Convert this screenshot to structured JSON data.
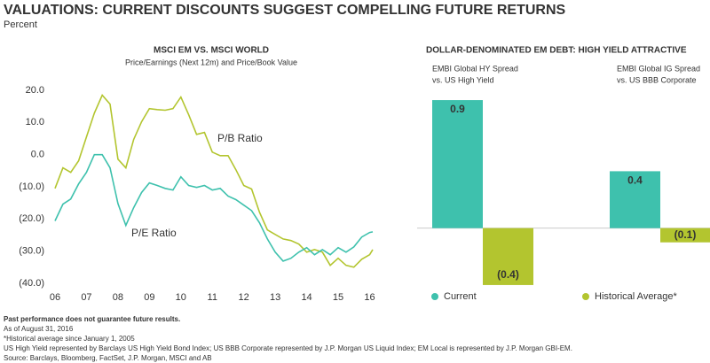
{
  "title": "VALUATIONS: CURRENT DISCOUNTS SUGGEST COMPELLING FUTURE RETURNS",
  "subtitle": "Percent",
  "notes": [
    "Past performance does not guarantee future results.",
    "As of August 31, 2016",
    "*Historical average since January 1, 2005",
    "US High Yield represented by Barclays US High Yield Bond Index; US BBB Corporate represented by J.P. Morgan US Liquid Index; EM Local is represented by J.P. Morgan GBI-EM.",
    "Source: Barclays, Bloomberg, FactSet, J.P. Morgan, MSCI and AB"
  ],
  "chart_data": [
    {
      "type": "line",
      "title": "MSCI EM VS. MSCI WORLD",
      "subtitle": "Price/Earnings (Next 12m) and Price/Book Value",
      "x": [
        2006,
        2006.25,
        2006.5,
        2006.75,
        2007,
        2007.25,
        2007.5,
        2007.75,
        2008,
        2008.25,
        2008.5,
        2008.75,
        2009,
        2009.25,
        2009.5,
        2009.75,
        2010,
        2010.25,
        2010.5,
        2010.75,
        2011,
        2011.25,
        2011.5,
        2011.75,
        2012,
        2012.25,
        2012.5,
        2012.75,
        2013,
        2013.25,
        2013.5,
        2013.75,
        2014,
        2014.25,
        2014.5,
        2014.75,
        2015,
        2015.25,
        2015.5,
        2015.75,
        2016,
        2016.1
      ],
      "series": [
        {
          "name": "P/B Ratio",
          "color": "#b3c52f",
          "values": [
            -10.5,
            -4.1,
            -5.5,
            -1.9,
            5.5,
            12.9,
            18.5,
            15.7,
            -1.4,
            -4.1,
            4.7,
            10.2,
            14.3,
            14.0,
            13.8,
            14.3,
            17.9,
            12.4,
            6.3,
            6.9,
            0.8,
            -0.3,
            -0.3,
            -4.7,
            -9.6,
            -10.7,
            -17.9,
            -23.4,
            -24.8,
            -26.2,
            -26.7,
            -27.8,
            -30.3,
            -29.5,
            -30.3,
            -34.4,
            -32.2,
            -34.4,
            -35.0,
            -32.5,
            -31.1,
            -29.5
          ]
        },
        {
          "name": "P/E Ratio",
          "color": "#3ec1ad",
          "values": [
            -20.6,
            -15.4,
            -13.8,
            -9.1,
            -5.5,
            0.0,
            0.0,
            -4.1,
            -15.2,
            -22.0,
            -16.5,
            -11.8,
            -8.8,
            -9.6,
            -10.5,
            -11.0,
            -6.9,
            -9.6,
            -10.2,
            -9.6,
            -11.0,
            -10.5,
            -12.9,
            -14.0,
            -15.7,
            -17.4,
            -21.2,
            -26.2,
            -30.3,
            -33.1,
            -32.2,
            -30.3,
            -28.9,
            -31.1,
            -29.5,
            -31.1,
            -28.9,
            -30.3,
            -28.7,
            -25.6,
            -24.2,
            -24.0
          ]
        }
      ],
      "xlim": [
        2006,
        2016.1
      ],
      "xticks": [
        {
          "value": 2006,
          "label": "06"
        },
        {
          "value": 2007,
          "label": "07"
        },
        {
          "value": 2008,
          "label": "08"
        },
        {
          "value": 2009,
          "label": "09"
        },
        {
          "value": 2010,
          "label": "10"
        },
        {
          "value": 2011,
          "label": "11"
        },
        {
          "value": 2012,
          "label": "12"
        },
        {
          "value": 2013,
          "label": "13"
        },
        {
          "value": 2014,
          "label": "14"
        },
        {
          "value": 2015,
          "label": "15"
        },
        {
          "value": 2016,
          "label": "16"
        }
      ],
      "ylim": [
        -40,
        20
      ],
      "yticks": [
        {
          "value": 20,
          "label": "20.0"
        },
        {
          "value": 10,
          "label": "10.0"
        },
        {
          "value": 0,
          "label": "0.0"
        },
        {
          "value": -10,
          "label": "(10.0)"
        },
        {
          "value": -20,
          "label": "(20.0)"
        },
        {
          "value": -30,
          "label": "(30.0)"
        },
        {
          "value": -40,
          "label": "(40.0)"
        }
      ]
    },
    {
      "type": "bar",
      "title": "DOLLAR-DENOMINATED EM DEBT: HIGH YIELD ATTRACTIVE",
      "categories": [
        [
          "EMBI Global HY Spread",
          "vs. US High Yield"
        ],
        [
          "EMBI Global IG Spread",
          "vs. US BBB Corporate"
        ]
      ],
      "series": [
        {
          "name": "Current",
          "color": "#3ec1ad",
          "values": [
            0.9,
            0.4
          ],
          "value_labels": [
            "0.9",
            "0.4"
          ]
        },
        {
          "name": "Historical Average*",
          "color": "#b3c52f",
          "values": [
            -0.4,
            -0.1
          ],
          "value_labels": [
            "(0.4)",
            "(0.1)"
          ]
        }
      ],
      "ylim": [
        -0.5,
        1.0
      ]
    }
  ]
}
